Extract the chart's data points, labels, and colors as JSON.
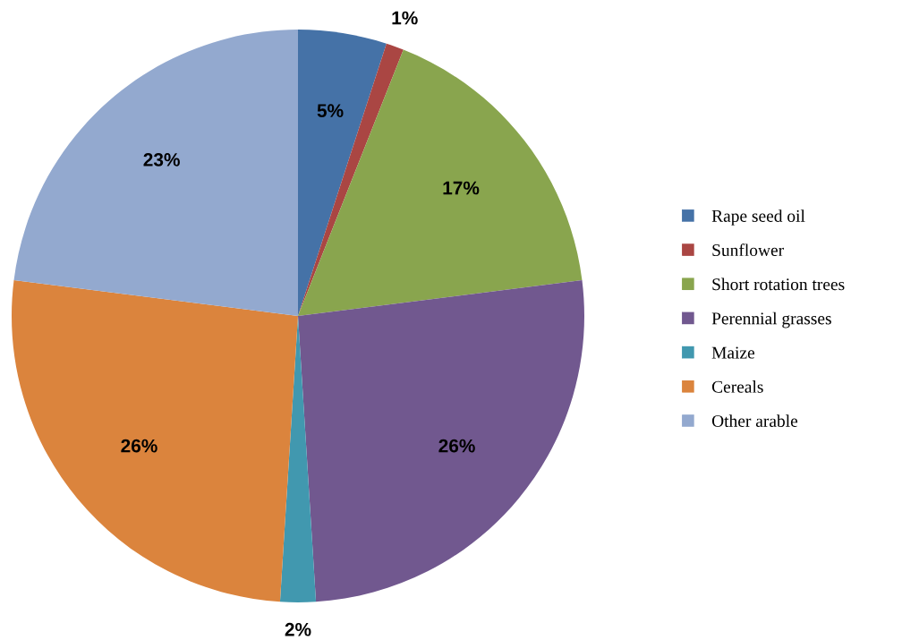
{
  "chart_data": {
    "type": "pie",
    "categories": [
      "Rape seed oil",
      "Sunflower",
      "Short rotation trees",
      "Perennial grasses",
      "Maize",
      "Cereals",
      "Other arable"
    ],
    "values": [
      5,
      1,
      17,
      26,
      2,
      26,
      23
    ],
    "value_labels": [
      "5%",
      "1%",
      "17%",
      "26%",
      "2%",
      "26%",
      "23%"
    ],
    "colors": [
      "#4572a7",
      "#aa4643",
      "#89a54e",
      "#71588f",
      "#4198af",
      "#db843d",
      "#93a9cf"
    ],
    "legend": "right"
  }
}
